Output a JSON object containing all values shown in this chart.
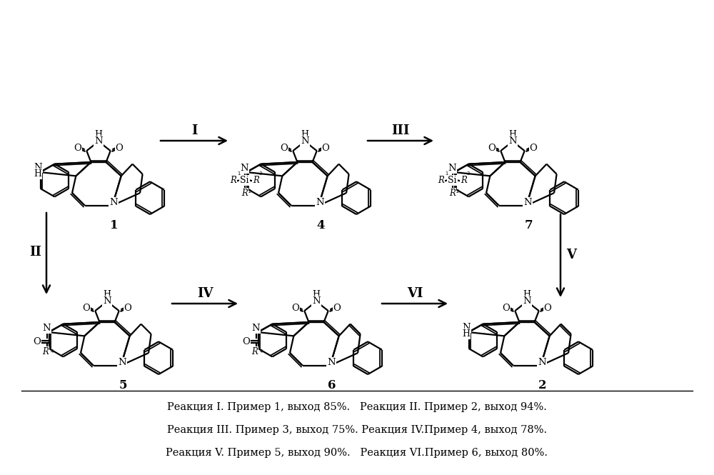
{
  "background_color": "#ffffff",
  "figsize": [
    10.0,
    6.65
  ],
  "dpi": 100,
  "text_lines": [
    "Реакция I. Пример 1, выход 85%.   Реакция II. Пример 2, выход 94%.",
    "Реакция III. Пример 3, выход 75%. Реакция IV.Пример 4, выход 78%.",
    "Реакция V. Пример 5, выход 90%.   Реакция VI.Пример 6, выход 80%."
  ]
}
